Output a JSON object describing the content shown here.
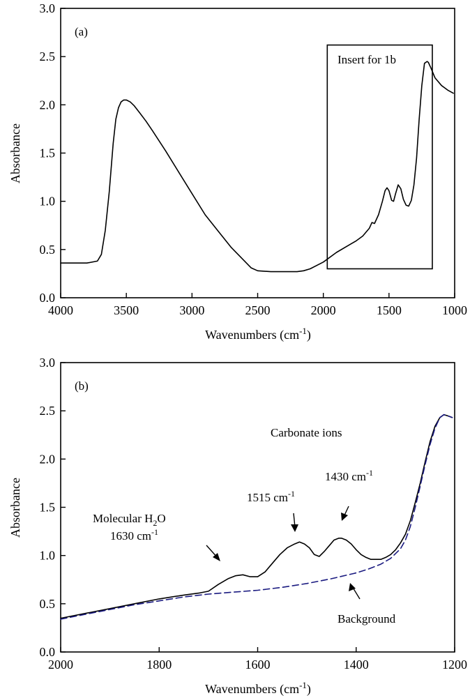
{
  "chart_data": [
    {
      "type": "line",
      "panel_label": "(a)",
      "xlabel": "Wavenumbers (cm",
      "xlabel_sup": "-1",
      "xlabel_close": ")",
      "ylabel": "Absorbance",
      "xlim": [
        4000,
        1000
      ],
      "ylim": [
        0,
        3
      ],
      "x_reversed": true,
      "xticks": [
        "4000",
        "3500",
        "3000",
        "2500",
        "2000",
        "1500",
        "1000"
      ],
      "yticks": [
        "0.0",
        "0.5",
        "1.0",
        "1.5",
        "2.0",
        "2.5",
        "3.0"
      ],
      "grid": false,
      "inset_box": {
        "label": "Insert for 1b",
        "x_range": [
          1970,
          1170
        ],
        "y_range": [
          0.3,
          2.62
        ]
      },
      "series": [
        {
          "style": "solid",
          "color": "#000000",
          "x": [
            4000,
            3800,
            3720,
            3690,
            3660,
            3630,
            3600,
            3580,
            3560,
            3540,
            3520,
            3500,
            3470,
            3440,
            3400,
            3350,
            3300,
            3200,
            3100,
            3000,
            2900,
            2800,
            2700,
            2600,
            2550,
            2500,
            2400,
            2300,
            2200,
            2150,
            2100,
            2000,
            1900,
            1800,
            1750,
            1700,
            1650,
            1630,
            1610,
            1580,
            1550,
            1530,
            1515,
            1500,
            1480,
            1465,
            1450,
            1430,
            1410,
            1390,
            1370,
            1350,
            1330,
            1310,
            1290,
            1270,
            1250,
            1230,
            1210,
            1200,
            1180,
            1150,
            1100,
            1050,
            1010
          ],
          "y": [
            0.36,
            0.36,
            0.38,
            0.45,
            0.7,
            1.1,
            1.6,
            1.85,
            1.97,
            2.03,
            2.05,
            2.05,
            2.03,
            1.99,
            1.92,
            1.83,
            1.73,
            1.52,
            1.3,
            1.08,
            0.86,
            0.69,
            0.52,
            0.38,
            0.31,
            0.28,
            0.27,
            0.27,
            0.27,
            0.28,
            0.3,
            0.37,
            0.47,
            0.55,
            0.59,
            0.64,
            0.72,
            0.78,
            0.77,
            0.86,
            1.0,
            1.11,
            1.14,
            1.11,
            1.01,
            1.0,
            1.08,
            1.17,
            1.13,
            1.02,
            0.96,
            0.95,
            1.01,
            1.17,
            1.45,
            1.85,
            2.2,
            2.43,
            2.45,
            2.44,
            2.38,
            2.28,
            2.2,
            2.15,
            2.12
          ]
        }
      ]
    },
    {
      "type": "line",
      "panel_label": "(b)",
      "xlabel": "Wavenumbers (cm",
      "xlabel_sup": "-1",
      "xlabel_close": ")",
      "ylabel": "Absorbance",
      "xlim": [
        2000,
        1200
      ],
      "ylim": [
        0,
        3
      ],
      "x_reversed": true,
      "xticks": [
        "2000",
        "1800",
        "1600",
        "1400",
        "1200"
      ],
      "yticks": [
        "0.0",
        "0.5",
        "1.0",
        "1.5",
        "2.0",
        "2.5",
        "3.0"
      ],
      "grid": false,
      "annotations": {
        "carbonate": "Carbonate ions",
        "water_line1": "Molecular H",
        "water_sub": "2",
        "water_line1_end": "O",
        "water_line2": "1630 cm",
        "water_line2_sup": "-1",
        "peak1515": "1515 cm",
        "peak1515_sup": "-1",
        "peak1430": "1430 cm",
        "peak1430_sup": "-1",
        "background": "Background"
      },
      "series": [
        {
          "style": "solid",
          "color": "#000000",
          "x": [
            2000,
            1950,
            1900,
            1850,
            1800,
            1750,
            1720,
            1700,
            1680,
            1660,
            1645,
            1630,
            1615,
            1600,
            1585,
            1570,
            1555,
            1540,
            1525,
            1515,
            1505,
            1495,
            1485,
            1475,
            1465,
            1455,
            1445,
            1435,
            1430,
            1420,
            1410,
            1400,
            1390,
            1380,
            1370,
            1360,
            1350,
            1340,
            1330,
            1320,
            1310,
            1300,
            1290,
            1280,
            1270,
            1260,
            1250,
            1240,
            1230,
            1222,
            1215,
            1205
          ],
          "y": [
            0.35,
            0.4,
            0.45,
            0.5,
            0.55,
            0.59,
            0.61,
            0.63,
            0.7,
            0.76,
            0.79,
            0.8,
            0.78,
            0.78,
            0.83,
            0.92,
            1.01,
            1.08,
            1.12,
            1.14,
            1.12,
            1.08,
            1.01,
            0.99,
            1.04,
            1.1,
            1.16,
            1.18,
            1.18,
            1.16,
            1.12,
            1.06,
            1.01,
            0.98,
            0.96,
            0.96,
            0.96,
            0.98,
            1.01,
            1.06,
            1.13,
            1.22,
            1.36,
            1.55,
            1.75,
            1.97,
            2.18,
            2.34,
            2.43,
            2.46,
            2.45,
            2.43
          ]
        },
        {
          "style": "dashed",
          "color": "#1a1a80",
          "x": [
            2000,
            1950,
            1900,
            1850,
            1800,
            1750,
            1700,
            1650,
            1600,
            1550,
            1500,
            1450,
            1400,
            1375,
            1350,
            1330,
            1310,
            1300,
            1290,
            1280,
            1270,
            1260,
            1250,
            1240,
            1230,
            1222,
            1215,
            1205
          ],
          "y": [
            0.34,
            0.39,
            0.44,
            0.49,
            0.53,
            0.57,
            0.6,
            0.62,
            0.64,
            0.67,
            0.71,
            0.76,
            0.82,
            0.86,
            0.91,
            0.97,
            1.07,
            1.16,
            1.3,
            1.5,
            1.72,
            1.94,
            2.15,
            2.32,
            2.43,
            2.46,
            2.45,
            2.43
          ]
        }
      ]
    }
  ]
}
